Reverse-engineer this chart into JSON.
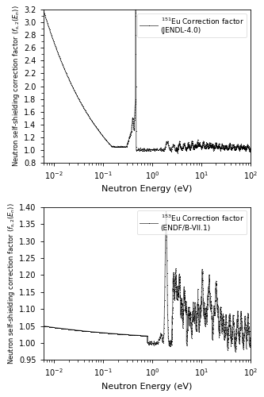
{
  "top_plot": {
    "ylabel": "Neutron self-shielding correction factor ($f_{s,2}(E_n)$)",
    "xlabel": "Neutron Energy (eV)",
    "legend_label": "$^{151}$Eu Correction factor\n(JENDL-4.0)",
    "xlim": [
      0.006,
      100
    ],
    "ylim": [
      0.8,
      3.2
    ],
    "yticks": [
      0.8,
      1.0,
      1.2,
      1.4,
      1.6,
      1.8,
      2.0,
      2.2,
      2.4,
      2.6,
      2.8,
      3.0,
      3.2
    ],
    "line_color": "#666666",
    "marker_size": 1.5
  },
  "bottom_plot": {
    "ylabel": "Neutron self-shielding correction factor ($f_{s,2}(E_n)$)",
    "xlabel": "Neutron Energy (eV)",
    "legend_label": "$^{153}$Eu Correction factor\n(ENDF/B-VII.1)",
    "xlim": [
      0.006,
      100
    ],
    "ylim": [
      0.95,
      1.4
    ],
    "yticks": [
      0.95,
      1.0,
      1.05,
      1.1,
      1.15,
      1.2,
      1.25,
      1.3,
      1.35,
      1.4
    ],
    "line_color": "#666666",
    "marker_size": 1.5
  },
  "fig_bg": "#ffffff"
}
